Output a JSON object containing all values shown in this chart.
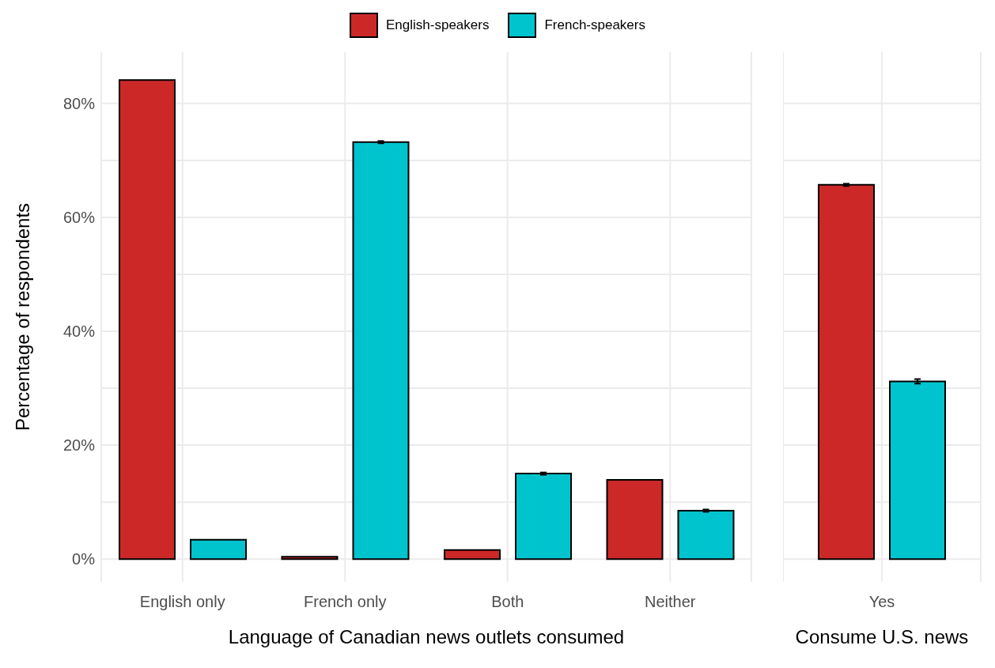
{
  "chart_data": [
    {
      "type": "bar",
      "categories": [
        "English only",
        "French only",
        "Both",
        "Neither"
      ],
      "xlabel": "Language of Canadian news outlets consumed",
      "ylabel": "Percentage of respondents",
      "series": [
        {
          "name": "English-speakers",
          "color": "#cc2828",
          "values": [
            84.1,
            0.4,
            1.6,
            13.9
          ],
          "errors": [
            null,
            null,
            null,
            null
          ]
        },
        {
          "name": "French-speakers",
          "color": "#00c4cd",
          "values": [
            3.4,
            73.2,
            15.0,
            8.5
          ],
          "errors": [
            null,
            0.2,
            0.2,
            0.2
          ]
        }
      ],
      "ylim": [
        -4,
        89
      ],
      "yticks": [
        {
          "value": 0,
          "label": "0%"
        },
        {
          "value": 10,
          "label": null
        },
        {
          "value": 20,
          "label": "20%"
        },
        {
          "value": 30,
          "label": null
        },
        {
          "value": 40,
          "label": "40%"
        },
        {
          "value": 50,
          "label": null
        },
        {
          "value": 60,
          "label": "60%"
        },
        {
          "value": 70,
          "label": null
        },
        {
          "value": 80,
          "label": "80%"
        }
      ],
      "grid": true,
      "legend": "top"
    },
    {
      "type": "bar",
      "categories": [
        "Yes"
      ],
      "xlabel": "Consume U.S. news",
      "series": [
        {
          "color": "#cc2828",
          "values": [
            65.7
          ],
          "errors": [
            0.2
          ]
        },
        {
          "color": "#00c4cd",
          "values": [
            31.2
          ],
          "errors": [
            0.4
          ]
        }
      ],
      "ylim": [
        -4,
        89
      ],
      "yticks": [
        0,
        10,
        20,
        30,
        40,
        50,
        60,
        70,
        80
      ],
      "grid": true,
      "tick_labels": "x"
    }
  ]
}
